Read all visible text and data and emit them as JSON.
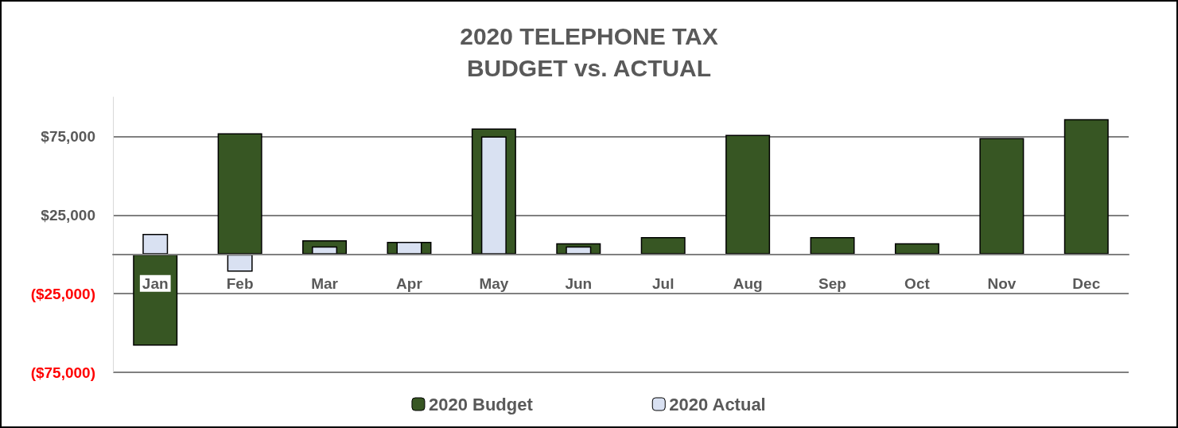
{
  "chart_data": {
    "type": "bar",
    "title": "2020 TELEPHONE TAX\nBUDGET vs. ACTUAL",
    "categories": [
      "Jan",
      "Feb",
      "Mar",
      "Apr",
      "May",
      "Jun",
      "Jul",
      "Aug",
      "Sep",
      "Oct",
      "Nov",
      "Dec"
    ],
    "series": [
      {
        "name": "2020 Budget",
        "color": "#375623",
        "values": [
          -58000,
          77000,
          9000,
          8000,
          80000,
          7000,
          11000,
          76000,
          11000,
          7000,
          74000,
          86000
        ]
      },
      {
        "name": "2020 Actual",
        "color": "#d9e1f2",
        "values": [
          13000,
          -11000,
          5000,
          8000,
          75000,
          5000,
          null,
          null,
          null,
          null,
          null,
          null
        ]
      }
    ],
    "ylim": [
      -75000,
      100000
    ],
    "yticks": [
      {
        "value": -75000,
        "label": "($75,000)"
      },
      {
        "value": -25000,
        "label": "($25,000)"
      },
      {
        "value": 25000,
        "label": "$25,000"
      },
      {
        "value": 75000,
        "label": "$75,000"
      }
    ],
    "grid": "y",
    "legend": "bottom"
  }
}
